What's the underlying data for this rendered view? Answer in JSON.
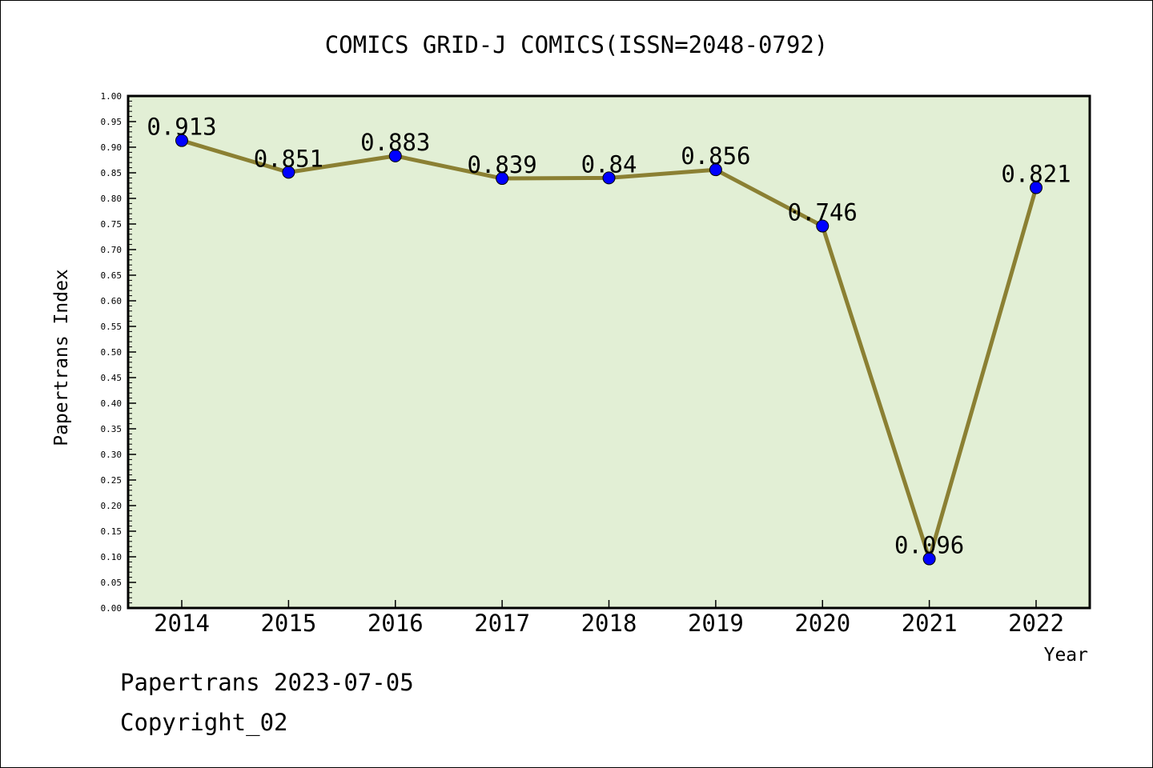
{
  "chart_data": {
    "type": "line",
    "title": "COMICS GRID-J COMICS(ISSN=2048-0792)",
    "xlabel": "Year",
    "ylabel": "Papertrans Index",
    "categories": [
      "2014",
      "2015",
      "2016",
      "2017",
      "2018",
      "2019",
      "2020",
      "2021",
      "2022"
    ],
    "values": [
      0.913,
      0.851,
      0.883,
      0.839,
      0.84,
      0.856,
      0.746,
      0.096,
      0.821
    ],
    "data_labels": [
      "0.913",
      "0.851",
      "0.883",
      "0.839",
      "0.84",
      "0.856",
      "0.746",
      "0.096",
      "0.821"
    ],
    "ylim": [
      0,
      1.0
    ],
    "yticks": [
      "0.00",
      "0.05",
      "0.10",
      "0.15",
      "0.20",
      "0.25",
      "0.30",
      "0.35",
      "0.40",
      "0.45",
      "0.50",
      "0.55",
      "0.60",
      "0.65",
      "0.70",
      "0.75",
      "0.80",
      "0.85",
      "0.90",
      "0.95",
      "1.00"
    ],
    "grid": false,
    "colors": {
      "plot_background": "#e2efd5",
      "line": "#8b8033",
      "marker": "#0000ff"
    }
  },
  "footer": {
    "line1": "Papertrans 2023-07-05",
    "line2": "Copyright_02"
  }
}
